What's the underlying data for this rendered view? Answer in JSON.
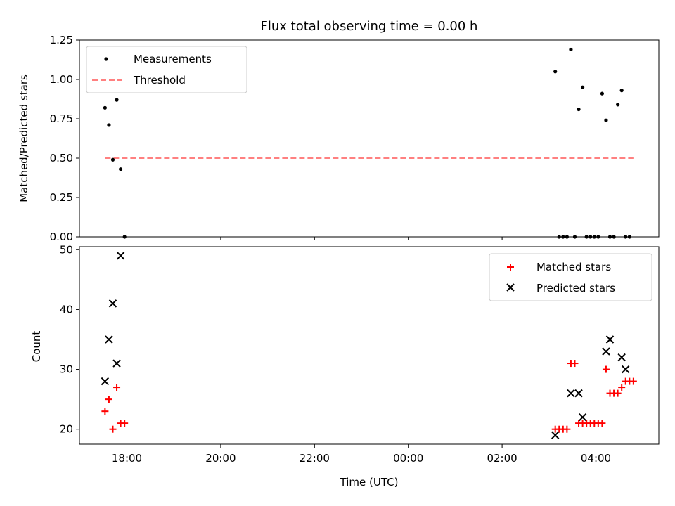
{
  "title": "Flux total observing time = 0.00 h",
  "colors": {
    "matched": "#ff0000",
    "predicted": "#000000",
    "measurement": "#000000",
    "threshold": "#ff8080"
  },
  "chart_data": [
    {
      "type": "scatter",
      "ylabel": "Matched/Predicted stars",
      "ylim": [
        0,
        1.25
      ],
      "yticks": [
        "0.00",
        "0.25",
        "0.50",
        "0.75",
        "1.00",
        "1.25"
      ],
      "legend": {
        "position": "top-left",
        "entries": [
          "Measurements",
          "Threshold"
        ]
      },
      "series": [
        {
          "name": "Measurements",
          "points": [
            [
              "17:32",
              0.82
            ],
            [
              "17:37",
              0.71
            ],
            [
              "17:42",
              0.49
            ],
            [
              "17:47",
              0.87
            ],
            [
              "17:52",
              0.43
            ],
            [
              "17:57",
              0.0
            ],
            [
              "03:08",
              1.05
            ],
            [
              "03:13",
              0.0
            ],
            [
              "03:18",
              0.0
            ],
            [
              "03:23",
              0.0
            ],
            [
              "03:28",
              1.19
            ],
            [
              "03:33",
              0.0
            ],
            [
              "03:38",
              0.81
            ],
            [
              "03:43",
              0.95
            ],
            [
              "03:48",
              0.0
            ],
            [
              "03:53",
              0.0
            ],
            [
              "03:58",
              0.0
            ],
            [
              "04:03",
              0.0
            ],
            [
              "04:08",
              0.91
            ],
            [
              "04:13",
              0.74
            ],
            [
              "04:18",
              0.0
            ],
            [
              "04:23",
              0.0
            ],
            [
              "04:28",
              0.84
            ],
            [
              "04:33",
              0.93
            ],
            [
              "04:38",
              0.0
            ],
            [
              "04:43",
              0.0
            ]
          ]
        },
        {
          "name": "Threshold",
          "line": [
            [
              "17:32",
              0.5
            ],
            [
              "04:48",
              0.5
            ]
          ]
        }
      ]
    },
    {
      "type": "scatter",
      "xlabel": "Time (UTC)",
      "ylabel": "Count",
      "ylim": [
        17.5,
        50.5
      ],
      "yticks": [
        "20",
        "30",
        "40",
        "50"
      ],
      "xticks": [
        "18:00",
        "20:00",
        "22:00",
        "00:00",
        "02:00",
        "04:00"
      ],
      "legend": {
        "position": "top-right",
        "entries": [
          "Matched stars",
          "Predicted stars"
        ]
      },
      "series": [
        {
          "name": "Matched stars",
          "points": [
            [
              "17:32",
              23
            ],
            [
              "17:37",
              25
            ],
            [
              "17:42",
              20
            ],
            [
              "17:47",
              27
            ],
            [
              "17:52",
              21
            ],
            [
              "17:57",
              21
            ],
            [
              "03:08",
              20
            ],
            [
              "03:13",
              20
            ],
            [
              "03:18",
              20
            ],
            [
              "03:23",
              20
            ],
            [
              "03:28",
              31
            ],
            [
              "03:33",
              31
            ],
            [
              "03:38",
              21
            ],
            [
              "03:43",
              21
            ],
            [
              "03:48",
              21
            ],
            [
              "03:53",
              21
            ],
            [
              "03:58",
              21
            ],
            [
              "04:03",
              21
            ],
            [
              "04:08",
              21
            ],
            [
              "04:13",
              30
            ],
            [
              "04:18",
              26
            ],
            [
              "04:23",
              26
            ],
            [
              "04:28",
              26
            ],
            [
              "04:33",
              27
            ],
            [
              "04:38",
              28
            ],
            [
              "04:43",
              28
            ],
            [
              "04:48",
              28
            ]
          ]
        },
        {
          "name": "Predicted stars",
          "points": [
            [
              "17:32",
              28
            ],
            [
              "17:37",
              35
            ],
            [
              "17:42",
              41
            ],
            [
              "17:47",
              31
            ],
            [
              "17:52",
              49
            ],
            [
              "03:08",
              19
            ],
            [
              "03:28",
              26
            ],
            [
              "03:38",
              26
            ],
            [
              "03:43",
              22
            ],
            [
              "04:13",
              33
            ],
            [
              "04:18",
              35
            ],
            [
              "04:33",
              32
            ],
            [
              "04:38",
              30
            ]
          ]
        }
      ]
    }
  ]
}
